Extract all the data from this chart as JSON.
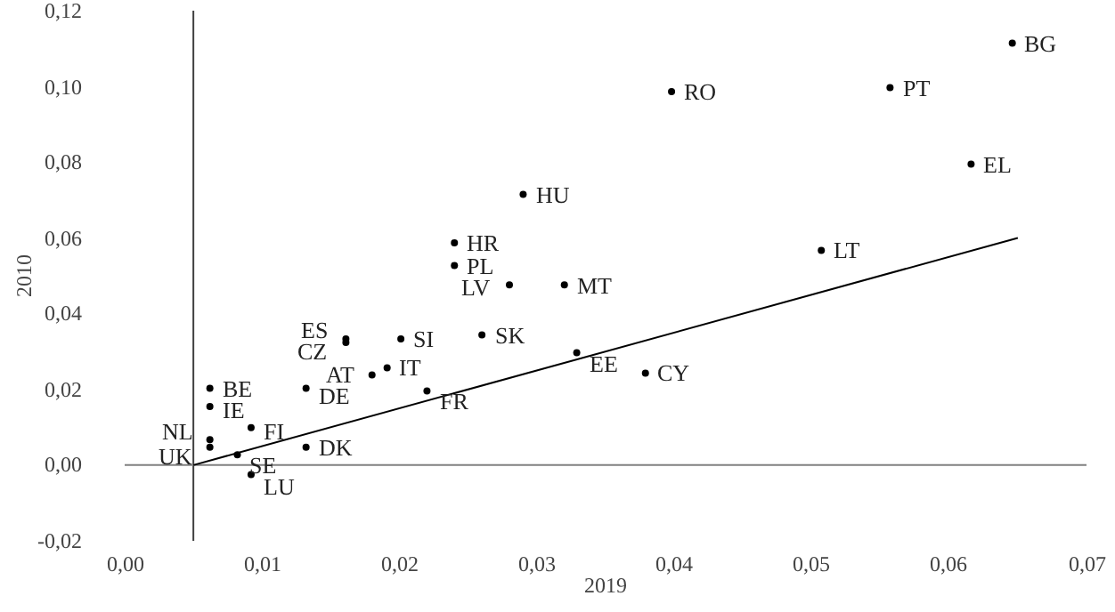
{
  "chart_data": {
    "type": "scatter",
    "xlabel": "2019",
    "ylabel": "2010",
    "xlim": [
      0,
      0.07
    ],
    "ylim": [
      -0.02,
      0.12
    ],
    "xticks": [
      {
        "value": 0,
        "label": "0,00"
      },
      {
        "value": 0.01,
        "label": "0,01"
      },
      {
        "value": 0.02,
        "label": "0,02"
      },
      {
        "value": 0.03,
        "label": "0,03"
      },
      {
        "value": 0.04,
        "label": "0,04"
      },
      {
        "value": 0.05,
        "label": "0,05"
      },
      {
        "value": 0.06,
        "label": "0,06"
      },
      {
        "value": 0.07,
        "label": "0,07"
      }
    ],
    "yticks": [
      {
        "value": -0.02,
        "label": "-0,02"
      },
      {
        "value": 0,
        "label": "0,00"
      },
      {
        "value": 0.02,
        "label": "0,02"
      },
      {
        "value": 0.04,
        "label": "0,04"
      },
      {
        "value": 0.06,
        "label": "0,06"
      },
      {
        "value": 0.08,
        "label": "0,08"
      },
      {
        "value": 0.1,
        "label": "0,10"
      },
      {
        "value": 0.12,
        "label": "0,12"
      }
    ],
    "grid": false,
    "legend": false,
    "marker": "circle",
    "series": [
      {
        "type": "scatter",
        "color": "#000000",
        "x": [
          0.0062,
          0.0062,
          0.0062,
          0.0062,
          0.0092,
          0.0082,
          0.0092,
          0.0132,
          0.0132,
          0.0161,
          0.0161,
          0.0201,
          0.0191,
          0.018,
          0.022,
          0.024,
          0.024,
          0.029,
          0.028,
          0.026,
          0.032,
          0.0329,
          0.0379,
          0.0398,
          0.0557,
          0.0646,
          0.0616,
          0.0507
        ],
        "values": [
          0.0047,
          0.0067,
          0.0203,
          0.0155,
          0.0099,
          0.0027,
          -0.0025,
          0.0047,
          0.0203,
          0.0333,
          0.0324,
          0.0333,
          0.0257,
          0.0238,
          0.0196,
          0.0587,
          0.0527,
          0.0715,
          0.0476,
          0.0344,
          0.0476,
          0.0297,
          0.0243,
          0.0986,
          0.0997,
          0.1114,
          0.0795,
          0.0567
        ]
      },
      {
        "type": "line",
        "color": "#000000",
        "line_style": "solid",
        "marker": "none",
        "x": [
          0.005,
          0.065
        ],
        "values": [
          0,
          0.06
        ]
      }
    ],
    "ref_lines": [
      {
        "axis": "x",
        "value": 0.005,
        "color": "#404040"
      },
      {
        "axis": "y",
        "value": 0,
        "color": "#808080"
      }
    ],
    "annotations": [
      {
        "text": "UK",
        "x": 0.0062,
        "y": 0.0047
      },
      {
        "text": "NL",
        "x": 0.0062,
        "y": 0.0067
      },
      {
        "text": "BE",
        "x": 0.0062,
        "y": 0.0203
      },
      {
        "text": "IE",
        "x": 0.0062,
        "y": 0.0155
      },
      {
        "text": "FI",
        "x": 0.0092,
        "y": 0.0099
      },
      {
        "text": "SE",
        "x": 0.0082,
        "y": 0.0027
      },
      {
        "text": "LU",
        "x": 0.0092,
        "y": -0.0025
      },
      {
        "text": "DK",
        "x": 0.0132,
        "y": 0.0047
      },
      {
        "text": "DE",
        "x": 0.0132,
        "y": 0.0203
      },
      {
        "text": "ES",
        "x": 0.0161,
        "y": 0.0333
      },
      {
        "text": "CZ",
        "x": 0.0161,
        "y": 0.0324
      },
      {
        "text": "SI",
        "x": 0.0201,
        "y": 0.0333
      },
      {
        "text": "IT",
        "x": 0.0191,
        "y": 0.0257
      },
      {
        "text": "AT",
        "x": 0.018,
        "y": 0.0238
      },
      {
        "text": "FR",
        "x": 0.022,
        "y": 0.0196
      },
      {
        "text": "HR",
        "x": 0.024,
        "y": 0.0587
      },
      {
        "text": "PL",
        "x": 0.024,
        "y": 0.0527
      },
      {
        "text": "HU",
        "x": 0.029,
        "y": 0.0715
      },
      {
        "text": "LV",
        "x": 0.028,
        "y": 0.0476
      },
      {
        "text": "SK",
        "x": 0.026,
        "y": 0.0344
      },
      {
        "text": "MT",
        "x": 0.032,
        "y": 0.0476
      },
      {
        "text": "EE",
        "x": 0.0329,
        "y": 0.0297
      },
      {
        "text": "CY",
        "x": 0.0379,
        "y": 0.0243
      },
      {
        "text": "RO",
        "x": 0.0398,
        "y": 0.0986
      },
      {
        "text": "PT",
        "x": 0.0557,
        "y": 0.0997
      },
      {
        "text": "BG",
        "x": 0.0646,
        "y": 0.1114
      },
      {
        "text": "EL",
        "x": 0.0616,
        "y": 0.0795
      },
      {
        "text": "LT",
        "x": 0.0507,
        "y": 0.0567
      }
    ]
  }
}
